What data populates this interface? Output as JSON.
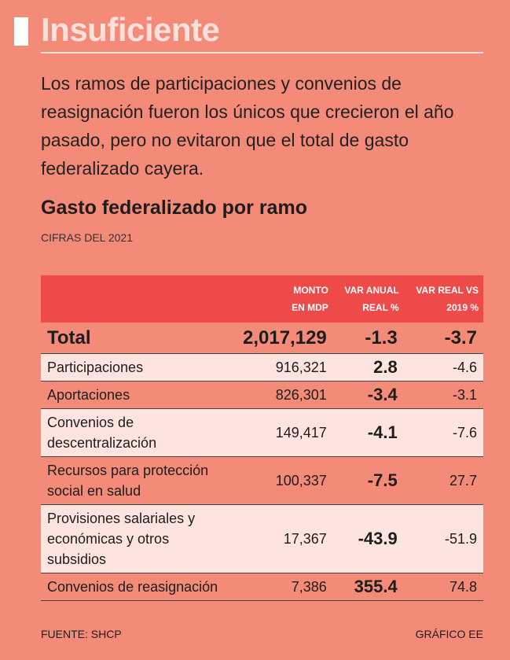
{
  "header": {
    "title": "Insuficiente",
    "subtitle": "Los ramos de participaciones y convenios de reasignación fueron los únicos que crecieron el año pasado, pero no evitaron que el total de gasto federalizado cayera."
  },
  "table": {
    "title": "Gasto federalizado por ramo",
    "subtitle": "CIFRAS DEL 2021",
    "columns": [
      "",
      [
        "MONTO",
        "EN MDP"
      ],
      [
        "VAR ANUAL",
        "REAL %"
      ],
      [
        "VAR REAL VS",
        "2019 %"
      ]
    ],
    "rows": [
      [
        "Total",
        "2,017,129",
        "-1.3",
        "-3.7"
      ],
      [
        "Participaciones",
        "916,321",
        "2.8",
        "-4.6"
      ],
      [
        "Aportaciones",
        "826,301",
        "-3.4",
        "-3.1"
      ],
      [
        "Convenios de descentralización",
        "149,417",
        "-4.1",
        "-7.6"
      ],
      [
        "Recursos para protección social en salud",
        "100,337",
        "-7.5",
        "27.7"
      ],
      [
        "Provisiones salariales y económicas y otros subsidios",
        "17,367",
        "-43.9",
        "-51.9"
      ],
      [
        "Convenios de reasignación",
        "7,386",
        "355.4",
        "74.8"
      ]
    ]
  },
  "footer": {
    "source": "FUENTE: SHCP",
    "credit": "GRÁFICO EE"
  }
}
